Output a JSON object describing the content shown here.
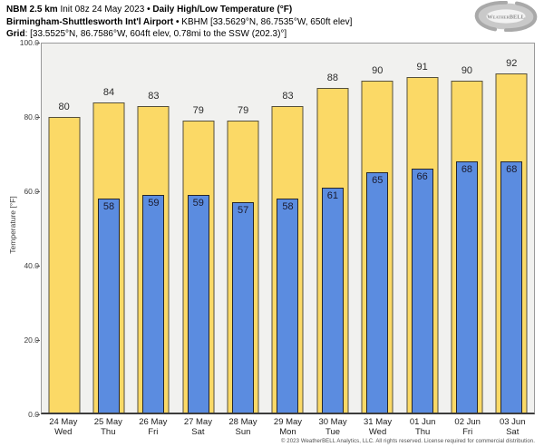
{
  "header": {
    "model": "NBM 2.5 km",
    "init": " Init 08z 24 May 2023 ",
    "sep1": "•",
    "product": " Daily High/Low Temperature (°F)",
    "station_name": "Birmingham-Shuttlesworth Int'l Airport",
    "sep2": "•",
    "station_details": " KBHM [33.5629°N, 86.7535°W, 650ft elev]",
    "grid_label": "Grid",
    "grid_details": ": [33.5525°N, 86.7586°W, 604ft elev, 0.78mi to the SSW (202.3)°]"
  },
  "logo": {
    "brand": "WeatherBELL"
  },
  "chart_data": {
    "type": "bar",
    "title": "NBM 2.5 km Daily High/Low Temperature (°F) — KBHM",
    "categories": [
      "24 May",
      "25 May",
      "26 May",
      "27 May",
      "28 May",
      "29 May",
      "30 May",
      "31 May",
      "01 Jun",
      "02 Jun",
      "03 Jun"
    ],
    "weekdays": [
      "Wed",
      "Thu",
      "Fri",
      "Sat",
      "Sun",
      "Mon",
      "Tue",
      "Wed",
      "Thu",
      "Fri",
      "Sat"
    ],
    "series": [
      {
        "name": "High",
        "color": "#fbd966",
        "values": [
          80,
          84,
          83,
          79,
          79,
          83,
          88,
          90,
          91,
          90,
          92
        ]
      },
      {
        "name": "Low",
        "color": "#5b8ce0",
        "values": [
          null,
          58,
          59,
          59,
          57,
          58,
          61,
          65,
          66,
          68,
          68
        ]
      }
    ],
    "xlabel": "",
    "ylabel": "Temperature [°F]",
    "ylim": [
      0,
      100
    ],
    "yticks": [
      0,
      20,
      40,
      60,
      80,
      100
    ],
    "ytick_format": "one_decimal",
    "grid": false,
    "legend": "none",
    "plot_bg": "#f1f1ef",
    "bar_value_labels": true
  },
  "footer": "© 2023 WeatherBELL Analytics, LLC. All rights reserved. License required for commercial distribution."
}
